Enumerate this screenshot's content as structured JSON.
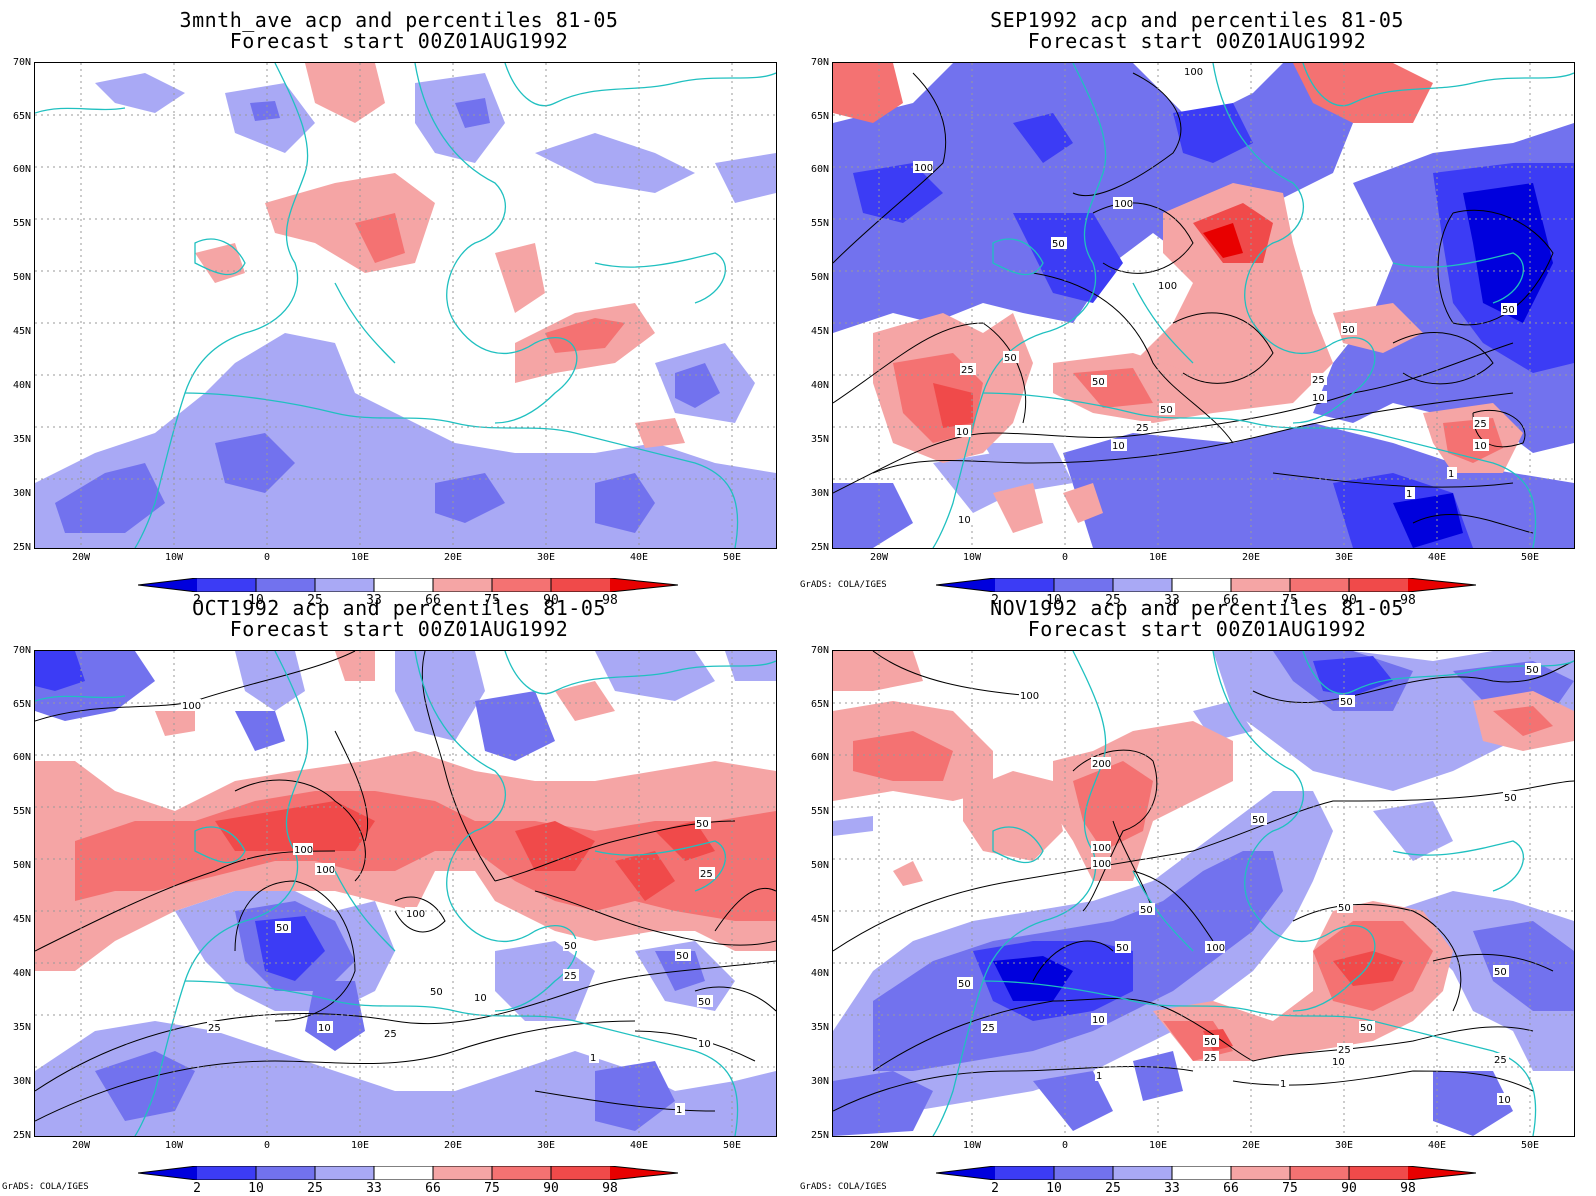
{
  "lat_labels": [
    "70N",
    "65N",
    "60N",
    "55N",
    "50N",
    "45N",
    "40N",
    "35N",
    "30N",
    "25N"
  ],
  "lon_labels": [
    "20W",
    "10W",
    "0",
    "10E",
    "20E",
    "30E",
    "40E",
    "50E"
  ],
  "legend": {
    "labels": [
      "2",
      "10",
      "25",
      "33",
      "66",
      "75",
      "90",
      "98"
    ],
    "colors": [
      "#0000dd",
      "#3c3cf5",
      "#7272ee",
      "#a9a9f5",
      "#ffffff",
      "#f5a5a5",
      "#f47272",
      "#f04a4a",
      "#e80000"
    ]
  },
  "credit": "GrADS: COLA/IGES",
  "panels": [
    {
      "title1": "3mnth_ave acp and percentiles 81-05",
      "title2": "Forecast start 00Z01AUG1992",
      "contour_labels": [],
      "show_credit": false
    },
    {
      "title1": "SEP1992 acp and percentiles 81-05",
      "title2": "Forecast start 00Z01AUG1992",
      "contour_labels": [
        "100",
        "100",
        "100",
        "50",
        "100",
        "50",
        "50",
        "25",
        "50",
        "50",
        "50",
        "25",
        "10",
        "25",
        "10",
        "10",
        "25",
        "10",
        "1",
        "1",
        "10"
      ],
      "show_credit": true
    },
    {
      "title1": "OCT1992 acp and percentiles 81-05",
      "title2": "Forecast start 00Z01AUG1992",
      "contour_labels": [
        "100",
        "100",
        "100",
        "100",
        "50",
        "50",
        "25",
        "50",
        "50",
        "10",
        "50",
        "25",
        "10",
        "25",
        "10",
        "1",
        "1",
        "25",
        "50"
      ],
      "show_credit": true
    },
    {
      "title1": "NOV1992 acp and percentiles 81-05",
      "title2": "Forecast start 00Z01AUG1992",
      "contour_labels": [
        "100",
        "50",
        "50",
        "200",
        "100",
        "100",
        "50",
        "50",
        "50",
        "50",
        "100",
        "50",
        "50",
        "10",
        "25",
        "50",
        "25",
        "1",
        "50",
        "25",
        "10",
        "1",
        "50",
        "25",
        "10"
      ],
      "show_credit": true
    }
  ]
}
